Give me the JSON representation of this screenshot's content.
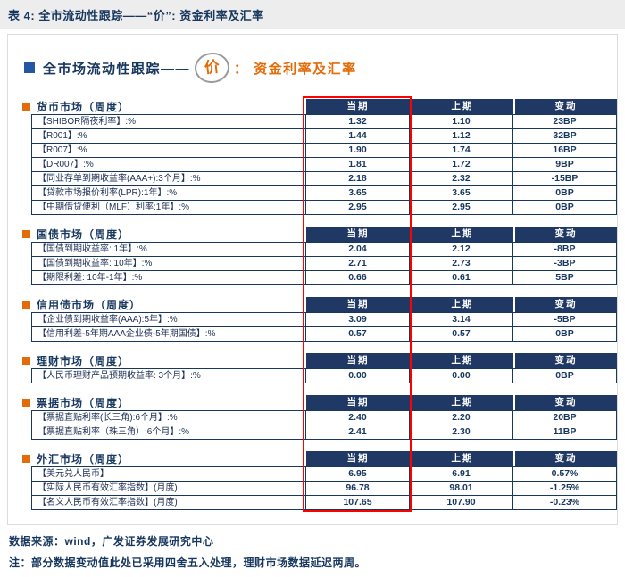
{
  "header": {
    "title": "表 4: 全市流动性跟踪——“价”: 资金利率及汇率"
  },
  "subtitle": {
    "prefix": "全市场流动性跟踪——",
    "circled": "价",
    "suffix": "： 资金利率及汇率"
  },
  "colors": {
    "navy": "#1f3864",
    "orange": "#e36c09",
    "blue_bullet": "#2456a4",
    "highlight_box": "#ff0000",
    "header_bg": "#1f3864"
  },
  "chart_data": {
    "type": "table",
    "title": "表 4: 全市流动性跟踪——“价”: 资金利率及汇率",
    "value_columns": [
      "当期",
      "上期",
      "变动"
    ],
    "highlighted_column": "当期",
    "sections": [
      {
        "title": "货币市场（周度）",
        "rows": [
          {
            "label": "【SHIBOR隔夜利率】:%",
            "current": "1.32",
            "previous": "1.10",
            "change": "23BP"
          },
          {
            "label": "【R001】:%",
            "current": "1.44",
            "previous": "1.12",
            "change": "32BP"
          },
          {
            "label": "【R007】:%",
            "current": "1.90",
            "previous": "1.74",
            "change": "16BP"
          },
          {
            "label": "【DR007】:%",
            "current": "1.81",
            "previous": "1.72",
            "change": "9BP"
          },
          {
            "label": "【同业存单到期收益率(AAA+):3个月】:%",
            "current": "2.18",
            "previous": "2.32",
            "change": "-15BP"
          },
          {
            "label": "【贷款市场报价利率(LPR):1年】:%",
            "current": "3.65",
            "previous": "3.65",
            "change": "0BP"
          },
          {
            "label": "【中期借贷便利（MLF）利率:1年】:%",
            "current": "2.95",
            "previous": "2.95",
            "change": "0BP"
          }
        ]
      },
      {
        "title": "国债市场（周度）",
        "rows": [
          {
            "label": "【国债到期收益率: 1年】:%",
            "current": "2.04",
            "previous": "2.12",
            "change": "-8BP"
          },
          {
            "label": "【国债到期收益率: 10年】:%",
            "current": "2.71",
            "previous": "2.73",
            "change": "-3BP"
          },
          {
            "label": "【期限利差: 10年-1年】:%",
            "current": "0.66",
            "previous": "0.61",
            "change": "5BP"
          }
        ]
      },
      {
        "title": "信用债市场（周度）",
        "rows": [
          {
            "label": "【企业债到期收益率(AAA):5年】:%",
            "current": "3.09",
            "previous": "3.14",
            "change": "-5BP"
          },
          {
            "label": "【信用利差-5年期AAA企业债-5年期国债】:%",
            "current": "0.57",
            "previous": "0.57",
            "change": "0BP"
          }
        ]
      },
      {
        "title": "理财市场（周度）",
        "rows": [
          {
            "label": "【人民币理财产品预期收益率: 3个月】:%",
            "current": "0.00",
            "previous": "0.00",
            "change": "0BP"
          }
        ]
      },
      {
        "title": "票据市场（周度）",
        "rows": [
          {
            "label": "【票据直贴利率(长三角):6个月】:%",
            "current": "2.40",
            "previous": "2.20",
            "change": "20BP"
          },
          {
            "label": "【票据直贴利率（珠三角）:6个月】:%",
            "current": "2.41",
            "previous": "2.30",
            "change": "11BP"
          }
        ]
      },
      {
        "title": "外汇市场（周度）",
        "rows": [
          {
            "label": "【美元兑人民币】",
            "current": "6.95",
            "previous": "6.91",
            "change": "0.57%"
          },
          {
            "label": "【实际人民币有效汇率指数】(月度)",
            "current": "96.78",
            "previous": "98.01",
            "change": "-1.25%"
          },
          {
            "label": "【名义人民币有效汇率指数】(月度)",
            "current": "107.65",
            "previous": "107.90",
            "change": "-0.23%"
          }
        ]
      }
    ]
  },
  "footer": {
    "source": "数据来源：wind，广发证券发展研究中心",
    "note": "注：部分数据变动值此处已采用四舍五入处理，理财市场数据延迟两周。"
  }
}
